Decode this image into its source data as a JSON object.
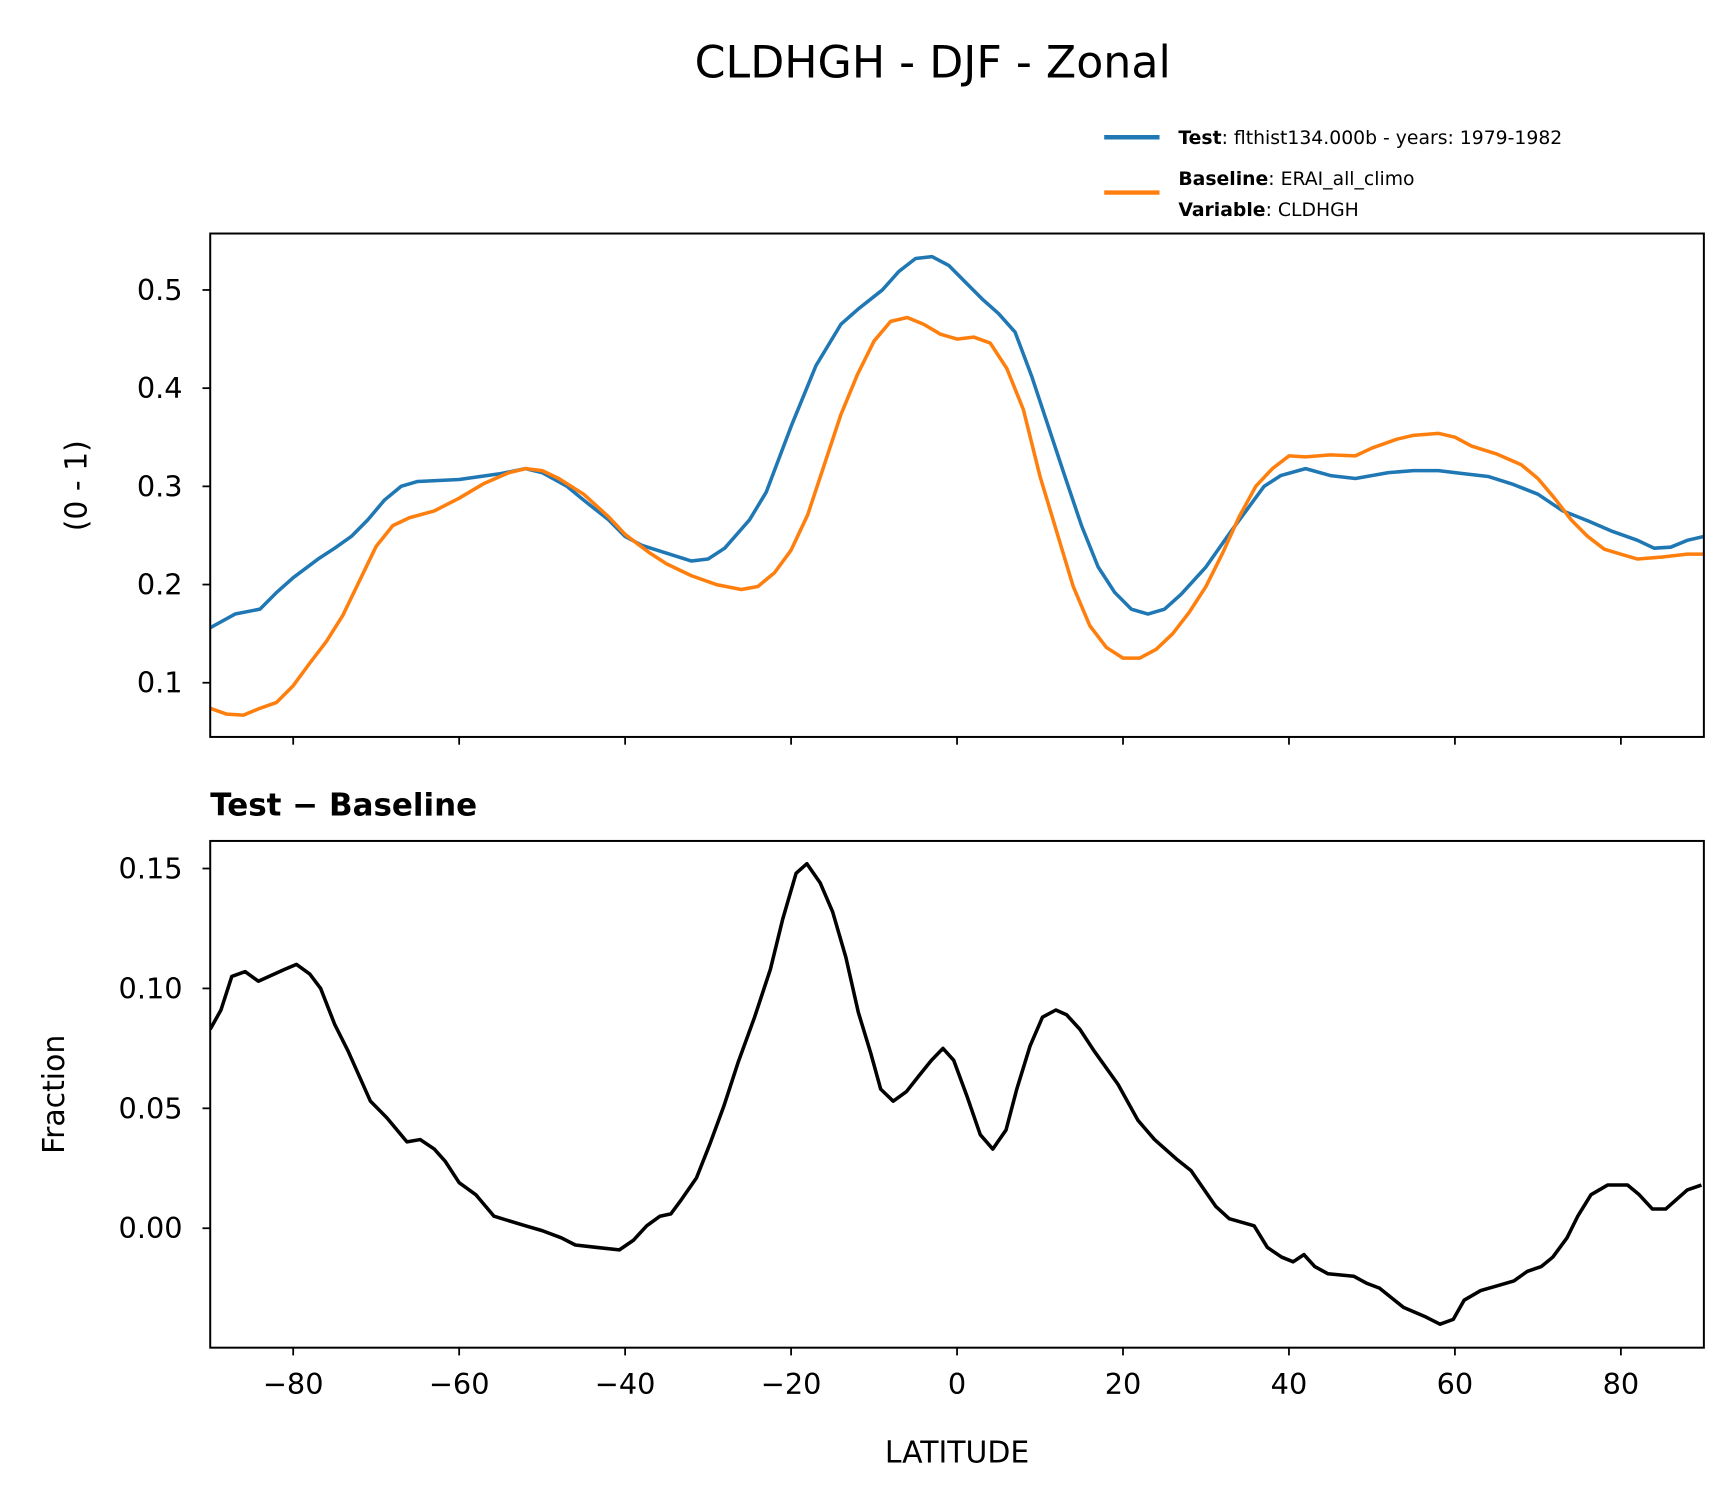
{
  "title": "CLDHGH - DJF - Zonal",
  "legend": {
    "test_bold": "Test",
    "test_text": ": flthist134.000b - years: 1979-1982",
    "baseline_bold": "Baseline",
    "baseline_text": ": ERAI_all_climo",
    "variable_bold": "Variable",
    "variable_text": ": CLDHGH"
  },
  "colors": {
    "test": "#1f77b4",
    "baseline": "#ff7f0e",
    "diff": "#000000"
  },
  "chart_data": [
    {
      "type": "line",
      "title": "",
      "ylabel": "(0 - 1)",
      "xlabel": "",
      "xlim": [
        -90,
        90
      ],
      "ylim": [
        0.0448,
        0.5575
      ],
      "xticks": [
        -80,
        -60,
        -40,
        -20,
        0,
        20,
        40,
        60,
        80
      ],
      "yticks": [
        0.1,
        0.2,
        0.3,
        0.4,
        0.5
      ],
      "ytick_labels": [
        "0.1",
        "0.2",
        "0.3",
        "0.4",
        "0.5"
      ],
      "legend_position": "top-right, above axes",
      "series": [
        {
          "name": "Test",
          "lat": [
            -90,
            -87,
            -84,
            -82,
            -80,
            -77,
            -75,
            -73,
            -71,
            -69,
            -67,
            -65,
            -60,
            -55,
            -52,
            -50,
            -47,
            -45,
            -42,
            -40,
            -38,
            -35,
            -32,
            -30,
            -28,
            -25,
            -23,
            -20,
            -17,
            -14,
            -12,
            -9,
            -7,
            -5,
            -3,
            -1,
            1,
            3,
            5,
            7,
            9,
            11,
            13,
            15,
            17,
            19,
            21,
            23,
            25,
            27,
            30,
            33,
            35,
            37,
            39,
            42,
            45,
            48,
            52,
            55,
            58,
            61,
            64,
            67,
            70,
            73,
            76,
            79,
            82,
            84,
            86,
            88,
            90
          ],
          "values": [
            0.156,
            0.17,
            0.175,
            0.192,
            0.207,
            0.226,
            0.237,
            0.249,
            0.266,
            0.286,
            0.3,
            0.305,
            0.307,
            0.313,
            0.318,
            0.314,
            0.3,
            0.286,
            0.266,
            0.249,
            0.24,
            0.232,
            0.224,
            0.226,
            0.237,
            0.266,
            0.294,
            0.361,
            0.423,
            0.465,
            0.48,
            0.5,
            0.519,
            0.532,
            0.534,
            0.525,
            0.508,
            0.491,
            0.476,
            0.457,
            0.412,
            0.361,
            0.31,
            0.26,
            0.218,
            0.192,
            0.175,
            0.17,
            0.175,
            0.19,
            0.218,
            0.254,
            0.277,
            0.3,
            0.311,
            0.318,
            0.311,
            0.308,
            0.314,
            0.316,
            0.316,
            0.313,
            0.31,
            0.302,
            0.292,
            0.275,
            0.265,
            0.254,
            0.245,
            0.237,
            0.238,
            0.245,
            0.249
          ]
        },
        {
          "name": "Baseline",
          "lat": [
            -90,
            -88,
            -86,
            -84,
            -82,
            -80,
            -78,
            -76,
            -74,
            -72,
            -70,
            -68,
            -66,
            -63,
            -60,
            -57,
            -54,
            -52,
            -50,
            -48,
            -45,
            -42,
            -40,
            -37,
            -35,
            -32,
            -29,
            -26,
            -24,
            -22,
            -20,
            -18,
            -16,
            -14,
            -12,
            -10,
            -8,
            -6,
            -4,
            -2,
            0,
            2,
            4,
            6,
            8,
            10,
            12,
            14,
            16,
            18,
            20,
            22,
            24,
            26,
            28,
            30,
            32,
            34,
            36,
            38,
            40,
            42,
            45,
            48,
            50,
            53,
            55,
            58,
            60,
            62,
            65,
            68,
            70,
            72,
            74,
            76,
            78,
            80,
            82,
            85,
            88,
            90
          ],
          "values": [
            0.074,
            0.068,
            0.067,
            0.074,
            0.08,
            0.097,
            0.12,
            0.142,
            0.169,
            0.204,
            0.239,
            0.26,
            0.268,
            0.275,
            0.288,
            0.303,
            0.314,
            0.318,
            0.316,
            0.308,
            0.292,
            0.269,
            0.251,
            0.232,
            0.221,
            0.209,
            0.2,
            0.195,
            0.198,
            0.212,
            0.235,
            0.271,
            0.322,
            0.373,
            0.414,
            0.448,
            0.468,
            0.472,
            0.465,
            0.455,
            0.45,
            0.452,
            0.446,
            0.42,
            0.378,
            0.31,
            0.254,
            0.198,
            0.158,
            0.136,
            0.125,
            0.125,
            0.134,
            0.15,
            0.172,
            0.198,
            0.232,
            0.269,
            0.3,
            0.318,
            0.331,
            0.33,
            0.332,
            0.331,
            0.339,
            0.348,
            0.352,
            0.354,
            0.35,
            0.341,
            0.333,
            0.322,
            0.308,
            0.288,
            0.266,
            0.249,
            0.236,
            0.231,
            0.226,
            0.228,
            0.231,
            0.231
          ]
        }
      ]
    },
    {
      "type": "line",
      "title": "Test − Baseline",
      "ylabel": "Fraction",
      "xlabel": "LATITUDE",
      "xlim": [
        -90,
        90
      ],
      "ylim": [
        -0.0498,
        0.1615
      ],
      "xticks": [
        -80,
        -60,
        -40,
        -20,
        0,
        20,
        40,
        60,
        80
      ],
      "xtick_labels": [
        "−80",
        "−60",
        "−40",
        "−20",
        "0",
        "20",
        "40",
        "60",
        "80"
      ],
      "yticks": [
        0.0,
        0.05,
        0.1,
        0.15
      ],
      "ytick_labels": [
        "0.00",
        "0.05",
        "0.10",
        "0.15"
      ],
      "series": [
        {
          "name": "Test - Baseline",
          "lat": [
            -90,
            -88.7,
            -87.4,
            -85.8,
            -84.2,
            -81,
            -79.6,
            -78,
            -76.7,
            -75,
            -73.4,
            -70.7,
            -68.7,
            -66.3,
            -64.7,
            -63,
            -61.7,
            -60,
            -58,
            -55.8,
            -52,
            -50,
            -47.7,
            -46,
            -43.4,
            -40.7,
            -39,
            -37.4,
            -35.8,
            -34.5,
            -33.2,
            -31.4,
            -29.8,
            -28.1,
            -26.4,
            -24.4,
            -22.5,
            -21,
            -19.4,
            -18.1,
            -16.5,
            -15,
            -13.4,
            -11.9,
            -10.4,
            -9.2,
            -7.7,
            -6.1,
            -4.5,
            -3.1,
            -1.7,
            -0.4,
            1.2,
            2.8,
            4.3,
            5.9,
            7.2,
            8.8,
            10.3,
            11.9,
            13.2,
            14.8,
            16.5,
            19.4,
            21.8,
            23.8,
            26.4,
            28.2,
            29.8,
            31.2,
            32.8,
            35.8,
            37.4,
            39.1,
            40.5,
            41.8,
            43.1,
            44.7,
            47.8,
            49.4,
            50.9,
            53.8,
            56.5,
            58.2,
            59.8,
            61.1,
            63.1,
            65.1,
            67.1,
            68.7,
            70.4,
            71.8,
            73.5,
            74.8,
            76.4,
            78.4,
            80.8,
            82.2,
            83.8,
            85.4,
            88,
            89.7
          ],
          "values": [
            0.083,
            0.091,
            0.105,
            0.107,
            0.103,
            0.108,
            0.11,
            0.106,
            0.1,
            0.085,
            0.074,
            0.053,
            0.046,
            0.036,
            0.037,
            0.033,
            0.028,
            0.019,
            0.014,
            0.005,
            0.001,
            -0.001,
            -0.004,
            -0.007,
            -0.008,
            -0.009,
            -0.005,
            0.001,
            0.005,
            0.006,
            0.012,
            0.021,
            0.035,
            0.051,
            0.069,
            0.088,
            0.108,
            0.129,
            0.148,
            0.152,
            0.144,
            0.132,
            0.113,
            0.09,
            0.073,
            0.058,
            0.053,
            0.057,
            0.064,
            0.07,
            0.075,
            0.07,
            0.055,
            0.039,
            0.033,
            0.041,
            0.058,
            0.076,
            0.088,
            0.091,
            0.089,
            0.083,
            0.074,
            0.06,
            0.045,
            0.037,
            0.029,
            0.024,
            0.016,
            0.009,
            0.004,
            0.001,
            -0.008,
            -0.012,
            -0.014,
            -0.011,
            -0.016,
            -0.019,
            -0.02,
            -0.023,
            -0.025,
            -0.033,
            -0.037,
            -0.04,
            -0.038,
            -0.03,
            -0.026,
            -0.024,
            -0.022,
            -0.018,
            -0.016,
            -0.012,
            -0.004,
            0.005,
            0.014,
            0.018,
            0.018,
            0.014,
            0.008,
            0.008,
            0.016,
            0.018
          ]
        }
      ]
    }
  ]
}
